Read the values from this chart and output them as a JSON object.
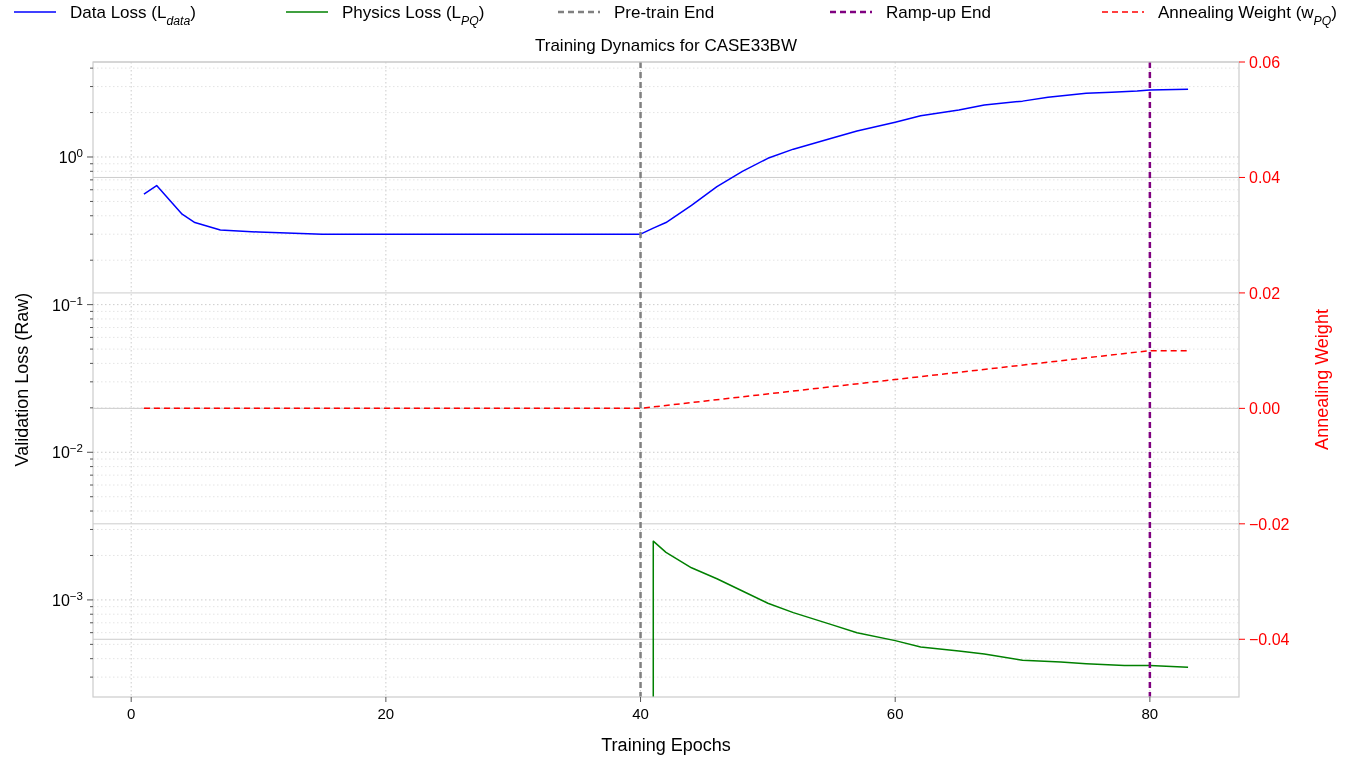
{
  "chart_data": {
    "type": "line",
    "title": "Training Dynamics for CASE33BW",
    "xlabel": "Training Epochs",
    "ylabel": "Validation Loss (Raw)",
    "y2label": "Annealing Weight",
    "log": "y",
    "grid": true,
    "legend": "top",
    "line_style": "solid",
    "xlim": [
      -3,
      87
    ],
    "xticks": [
      0,
      20,
      40,
      60,
      80
    ],
    "ylim": [
      0.00022,
      4.4
    ],
    "yticks": [
      {
        "value": 0.001,
        "label": "10$^{−3}$"
      },
      {
        "value": 0.01,
        "label": "10$^{−2}$"
      },
      {
        "value": 0.1,
        "label": "10$^{−1}$"
      },
      {
        "value": 1,
        "label": "10$^{0}$"
      }
    ],
    "y2lim": [
      -0.05,
      0.06
    ],
    "y2ticks": [
      {
        "value": -0.04,
        "label": "−0.04"
      },
      {
        "value": -0.02,
        "label": "−0.02"
      },
      {
        "value": 0,
        "label": "0.00"
      },
      {
        "value": 0.02,
        "label": "0.02"
      },
      {
        "value": 0.04,
        "label": "0.04"
      },
      {
        "value": 0.06,
        "label": "0.06"
      }
    ],
    "series": [
      {
        "name": "Data Loss (L$_{data}$)",
        "color": "#0000ff",
        "x": [
          1,
          2,
          4,
          5,
          6,
          7,
          10,
          15,
          20,
          25,
          30,
          35,
          40,
          41,
          42,
          44,
          46,
          48,
          50,
          52,
          55,
          57,
          60,
          62,
          65,
          67,
          70,
          72,
          75,
          77,
          79,
          80,
          83
        ],
        "values": [
          0.56,
          0.64,
          0.41,
          0.36,
          0.34,
          0.32,
          0.31,
          0.3,
          0.3,
          0.3,
          0.3,
          0.3,
          0.3,
          0.33,
          0.36,
          0.47,
          0.63,
          0.8,
          0.98,
          1.13,
          1.34,
          1.5,
          1.72,
          1.9,
          2.08,
          2.25,
          2.39,
          2.54,
          2.7,
          2.75,
          2.8,
          2.84,
          2.88
        ]
      },
      {
        "name": "Physics Loss (L$_{PQ}$)",
        "color": "#008000",
        "x": [
          41,
          41,
          42,
          44,
          46,
          48,
          50,
          52,
          55,
          57,
          60,
          62,
          65,
          67,
          70,
          73,
          75,
          78,
          80,
          83
        ],
        "values": [
          0.00022,
          0.0025,
          0.0021,
          0.00165,
          0.00139,
          0.00115,
          0.00095,
          0.00082,
          0.00068,
          0.0006,
          0.00053,
          0.00048,
          0.00045,
          0.00043,
          0.00039,
          0.00038,
          0.00037,
          0.00036,
          0.00036,
          0.00035
        ]
      },
      {
        "name": "Annealing Weight (w$_{PQ}$)",
        "color": "#ff0000",
        "axis": "y2",
        "line_style": "dashed",
        "x": [
          1,
          40,
          80,
          83
        ],
        "values": [
          0,
          0,
          0.01,
          0.01
        ]
      }
    ],
    "ref_lines": [
      {
        "axis": "x",
        "value": 40,
        "label": "Pre-train End",
        "color": "#808080",
        "line_style": "dashed"
      },
      {
        "axis": "x",
        "value": 80,
        "label": "Ramp-up End",
        "color": "#800080",
        "line_style": "dashed"
      }
    ]
  }
}
